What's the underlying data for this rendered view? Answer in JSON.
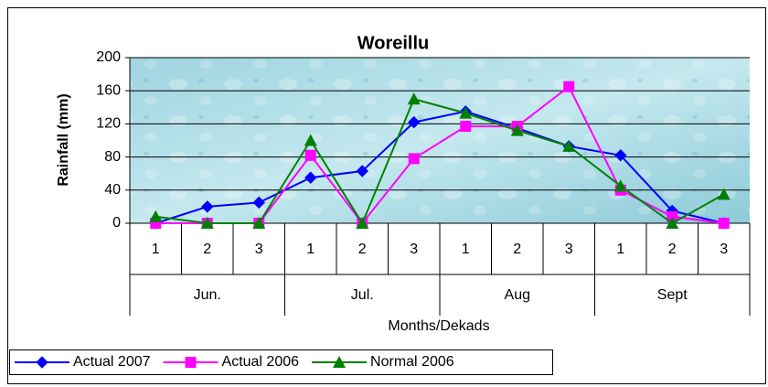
{
  "chart_data": {
    "type": "line",
    "title": "Woreillu",
    "y_label": "Rainfall (mm)",
    "x_label": "Months/Dekads",
    "categories": [
      "1",
      "2",
      "3",
      "1",
      "2",
      "3",
      "1",
      "2",
      "3",
      "1",
      "2",
      "3"
    ],
    "groups": [
      "Jun.",
      "Jul.",
      "Aug",
      "Sept"
    ],
    "series": [
      {
        "name": "Actual 2007",
        "color": "#0000ff",
        "marker": "diamond",
        "values": [
          0,
          20,
          25,
          55,
          63,
          122,
          135,
          115,
          93,
          82,
          15,
          0
        ]
      },
      {
        "name": "Actual 2006",
        "color": "#ff00ff",
        "marker": "square",
        "values": [
          0,
          0,
          0,
          82,
          0,
          78,
          117,
          117,
          165,
          40,
          8,
          0
        ]
      },
      {
        "name": "Normal 2006",
        "color": "#008000",
        "marker": "triangle",
        "values": [
          8,
          0,
          0,
          100,
          0,
          150,
          133,
          112,
          93,
          45,
          0,
          35
        ]
      }
    ],
    "ylim": [
      0,
      200
    ],
    "yticks": [
      0,
      40,
      80,
      120,
      160,
      200
    ],
    "grid": true,
    "legend": "bottom-left"
  }
}
